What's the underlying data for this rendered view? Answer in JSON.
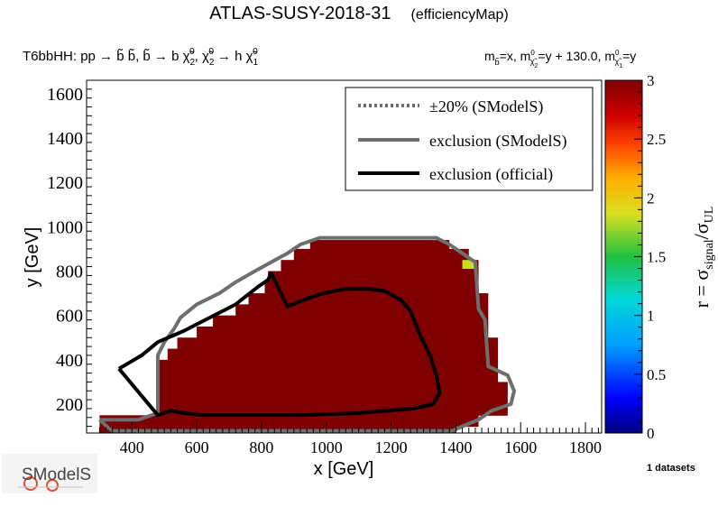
{
  "chart_data": {
    "type": "heatmap",
    "title": "ATLAS-SUSY-2018-31",
    "title_suffix": "(efficiencyMap)",
    "process_left": {
      "lead": "T6bbHH: pp ",
      "arrow1": "→",
      "sbar1": "b̃ b̃, b̃",
      "arrow2": "→",
      "b_chi": "b χ̃",
      "chi2_sub": "2",
      "chi2_sup": "0",
      "comma": ", χ̃",
      "chi2b_sub": "2",
      "chi2b_sup": "0",
      "arrow3": "→",
      "h_chi": "h χ̃",
      "chi1_sub": "1",
      "chi1_sup": "0"
    },
    "process_right": {
      "m_sb": "m",
      "m_sb_sub": "b̃",
      "eq1": "=x, m",
      "chi2": "χ̃",
      "chi2_sub": "2",
      "chi2_sup": "0",
      "eq2": "=y + 130.0, m",
      "chi1": "χ̃",
      "chi1_sub": "1",
      "chi1_sup": "0",
      "eq3": "=y"
    },
    "xlabel": "x [GeV]",
    "ylabel": "y [GeV]",
    "xlim": [
      260,
      1850
    ],
    "ylim": [
      70,
      1660
    ],
    "xticks": [
      400,
      600,
      800,
      1000,
      1200,
      1400,
      1600,
      1800
    ],
    "yticks": [
      200,
      400,
      600,
      800,
      1000,
      1200,
      1400,
      1600
    ],
    "z_axis": {
      "label": "r = σ",
      "label_sub1": "signal",
      "label_mid": "/σ",
      "label_sub2": "UL",
      "range": [
        0,
        3
      ],
      "ticks": [
        0,
        0.5,
        1,
        1.5,
        2,
        2.5,
        3
      ]
    },
    "grid": false,
    "legend_position": "top-right",
    "legend": [
      {
        "label": "±20% (SModelS)",
        "style": "dotted",
        "color": "#6e6e6e"
      },
      {
        "label": "exclusion (SModelS)",
        "style": "solid",
        "color": "#6e6e6e"
      },
      {
        "label": "exclusion (official)",
        "style": "solid",
        "color": "#000000"
      }
    ],
    "colors": {
      "filled_cell": "#7f0000",
      "highlight_cell": "#c8dc28",
      "sm_line": "#6e6e6e",
      "official_line": "#000000"
    },
    "region_value": 3.0,
    "region_strips": [
      {
        "x": [
          300,
          1400
        ],
        "y": [
          70,
          100
        ]
      },
      {
        "x": [
          300,
          1470
        ],
        "y": [
          100,
          150
        ]
      },
      {
        "x": [
          480,
          1560
        ],
        "y": [
          150,
          200
        ]
      },
      {
        "x": [
          480,
          1560
        ],
        "y": [
          200,
          250
        ]
      },
      {
        "x": [
          480,
          1560
        ],
        "y": [
          250,
          300
        ]
      },
      {
        "x": [
          480,
          1530
        ],
        "y": [
          300,
          350
        ]
      },
      {
        "x": [
          480,
          1530
        ],
        "y": [
          350,
          400
        ]
      },
      {
        "x": [
          510,
          1530
        ],
        "y": [
          400,
          450
        ]
      },
      {
        "x": [
          540,
          1530
        ],
        "y": [
          450,
          500
        ]
      },
      {
        "x": [
          600,
          1500
        ],
        "y": [
          500,
          550
        ]
      },
      {
        "x": [
          650,
          1500
        ],
        "y": [
          550,
          600
        ]
      },
      {
        "x": [
          720,
          1500
        ],
        "y": [
          600,
          650
        ]
      },
      {
        "x": [
          760,
          1500
        ],
        "y": [
          650,
          700
        ]
      },
      {
        "x": [
          810,
          1470
        ],
        "y": [
          700,
          750
        ]
      },
      {
        "x": [
          820,
          1470
        ],
        "y": [
          750,
          800
        ]
      },
      {
        "x": [
          860,
          1470
        ],
        "y": [
          800,
          850
        ]
      },
      {
        "x": [
          900,
          1440
        ],
        "y": [
          850,
          900
        ]
      },
      {
        "x": [
          950,
          1380
        ],
        "y": [
          900,
          940
        ]
      }
    ],
    "highlight_cells": [
      {
        "x": [
          1420,
          1460
        ],
        "y": [
          810,
          850
        ],
        "value": 1.9
      }
    ],
    "smodels_exclusion": [
      [
        300,
        130
      ],
      [
        330,
        90
      ],
      [
        340,
        80
      ],
      [
        1390,
        80
      ],
      [
        1420,
        100
      ],
      [
        1470,
        130
      ],
      [
        1510,
        170
      ],
      [
        1570,
        200
      ],
      [
        1580,
        260
      ],
      [
        1560,
        330
      ],
      [
        1500,
        370
      ],
      [
        1490,
        580
      ],
      [
        1470,
        630
      ],
      [
        1460,
        840
      ],
      [
        1420,
        880
      ],
      [
        1380,
        920
      ],
      [
        1340,
        950
      ],
      [
        980,
        950
      ],
      [
        920,
        920
      ],
      [
        880,
        880
      ],
      [
        830,
        840
      ],
      [
        780,
        800
      ],
      [
        720,
        750
      ],
      [
        670,
        700
      ],
      [
        600,
        650
      ],
      [
        550,
        590
      ],
      [
        530,
        540
      ],
      [
        500,
        480
      ],
      [
        480,
        420
      ],
      [
        480,
        300
      ],
      [
        480,
        160
      ],
      [
        420,
        130
      ],
      [
        300,
        130
      ]
    ],
    "official_exclusion": [
      [
        360,
        360
      ],
      [
        430,
        420
      ],
      [
        480,
        480
      ],
      [
        560,
        530
      ],
      [
        640,
        590
      ],
      [
        720,
        650
      ],
      [
        790,
        730
      ],
      [
        820,
        760
      ],
      [
        830,
        790
      ],
      [
        860,
        700
      ],
      [
        880,
        640
      ],
      [
        930,
        670
      ],
      [
        990,
        700
      ],
      [
        1060,
        720
      ],
      [
        1130,
        720
      ],
      [
        1180,
        710
      ],
      [
        1230,
        670
      ],
      [
        1260,
        620
      ],
      [
        1290,
        510
      ],
      [
        1320,
        420
      ],
      [
        1340,
        330
      ],
      [
        1350,
        250
      ],
      [
        1330,
        200
      ],
      [
        1270,
        180
      ],
      [
        1100,
        160
      ],
      [
        920,
        150
      ],
      [
        760,
        150
      ],
      [
        620,
        150
      ],
      [
        560,
        160
      ],
      [
        520,
        170
      ],
      [
        480,
        150
      ],
      [
        360,
        360
      ]
    ],
    "datasets_note": "1 datasets",
    "logo_text": "SModelS"
  }
}
